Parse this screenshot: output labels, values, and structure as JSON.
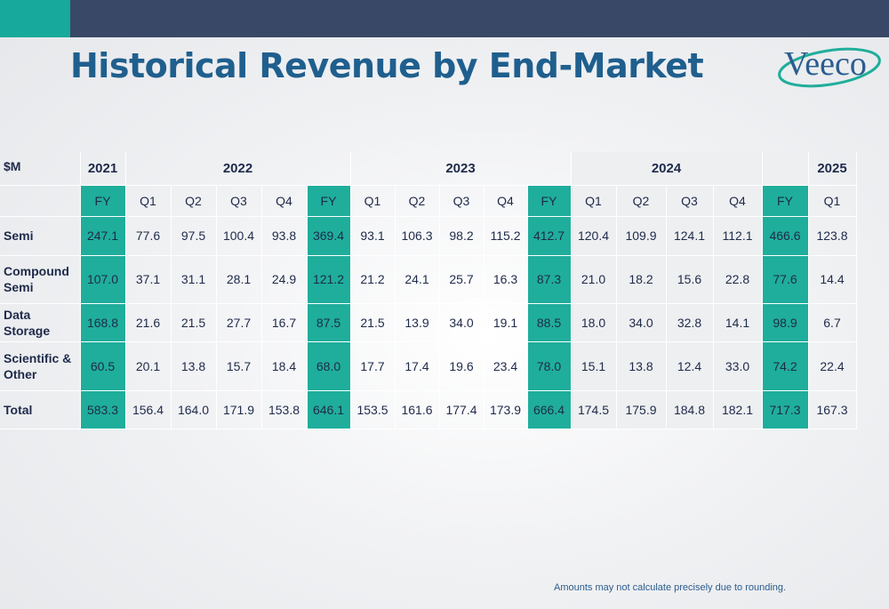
{
  "header": {
    "title": "Historical Revenue by End-Market"
  },
  "logo": {
    "text": "Veeco"
  },
  "colors": {
    "navy_bar": "#384866",
    "teal": "#1fae9b",
    "title": "#1f5f8e"
  },
  "table": {
    "unit": "$M",
    "years": [
      "2021",
      "2022",
      "2023",
      "2024",
      "2025"
    ],
    "periods": [
      "FY",
      "Q1",
      "Q2",
      "Q3",
      "Q4",
      "FY",
      "Q1",
      "Q2",
      "Q3",
      "Q4",
      "FY",
      "Q1",
      "Q2",
      "Q3",
      "Q4",
      "FY",
      "Q1"
    ],
    "rows": [
      {
        "label": "Semi",
        "values": [
          "247.1",
          "77.6",
          "97.5",
          "100.4",
          "93.8",
          "369.4",
          "93.1",
          "106.3",
          "98.2",
          "115.2",
          "412.7",
          "120.4",
          "109.9",
          "124.1",
          "112.1",
          "466.6",
          "123.8"
        ]
      },
      {
        "label": "Compound\nSemi",
        "values": [
          "107.0",
          "37.1",
          "31.1",
          "28.1",
          "24.9",
          "121.2",
          "21.2",
          "24.1",
          "25.7",
          "16.3",
          "87.3",
          "21.0",
          "18.2",
          "15.6",
          "22.8",
          "77.6",
          "14.4"
        ]
      },
      {
        "label": "Data Storage",
        "values": [
          "168.8",
          "21.6",
          "21.5",
          "27.7",
          "16.7",
          "87.5",
          "21.5",
          "13.9",
          "34.0",
          "19.1",
          "88.5",
          "18.0",
          "34.0",
          "32.8",
          "14.1",
          "98.9",
          "6.7"
        ]
      },
      {
        "label": "Scientific &\nOther",
        "values": [
          "60.5",
          "20.1",
          "13.8",
          "15.7",
          "18.4",
          "68.0",
          "17.7",
          "17.4",
          "19.6",
          "23.4",
          "78.0",
          "15.1",
          "13.8",
          "12.4",
          "33.0",
          "74.2",
          "22.4"
        ]
      },
      {
        "label": "Total",
        "values": [
          "583.3",
          "156.4",
          "164.0",
          "171.9",
          "153.8",
          "646.1",
          "153.5",
          "161.6",
          "177.4",
          "173.9",
          "666.4",
          "174.5",
          "175.9",
          "184.8",
          "182.1",
          "717.3",
          "167.3"
        ]
      }
    ]
  },
  "footnote": "Amounts may not calculate precisely due to rounding."
}
